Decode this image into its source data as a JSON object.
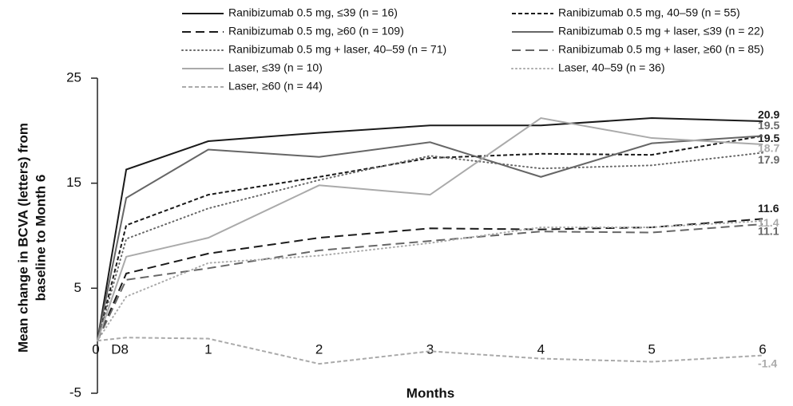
{
  "chart_data": {
    "type": "line",
    "ylabel": [
      "Mean change in BCVA (letters) from",
      "baseline to Month 6"
    ],
    "xlabel": "Months",
    "x": [
      0,
      0.26,
      1,
      2,
      3,
      4,
      5,
      6
    ],
    "xlim": [
      0,
      6
    ],
    "xticks": [
      0,
      {
        "value": 0.26,
        "label": "D8"
      },
      1,
      2,
      3,
      4,
      5,
      6
    ],
    "ylim": [
      -5,
      25
    ],
    "yticks": [
      -5,
      5,
      15,
      25
    ],
    "series": [
      {
        "name": "Ranibizumab 0.5 mg, ≤39 (n = 16)",
        "color": "#1a1a1a",
        "dash": "solid",
        "values": [
          0,
          16.3,
          19.0,
          19.8,
          20.5,
          20.5,
          21.2,
          20.9
        ]
      },
      {
        "name": "Ranibizumab 0.5 mg, 40–59 (n = 55)",
        "color": "#1a1a1a",
        "dash": "short",
        "values": [
          0,
          11.0,
          13.9,
          15.6,
          17.4,
          17.8,
          17.7,
          19.5
        ]
      },
      {
        "name": "Ranibizumab 0.5 mg, ≥60 (n = 109)",
        "color": "#1a1a1a",
        "dash": "long",
        "values": [
          0,
          6.4,
          8.3,
          9.8,
          10.7,
          10.6,
          10.8,
          11.6
        ]
      },
      {
        "name": "Ranibizumab 0.5 mg + laser, ≤39 (n = 22)",
        "color": "#666666",
        "dash": "solid",
        "values": [
          0,
          13.6,
          18.2,
          17.5,
          18.9,
          15.6,
          18.8,
          19.5
        ]
      },
      {
        "name": "Ranibizumab 0.5 mg + laser, 40–59 (n = 71)",
        "color": "#666666",
        "dash": "dotted",
        "values": [
          0,
          9.7,
          12.6,
          15.3,
          17.6,
          16.4,
          16.7,
          17.9
        ]
      },
      {
        "name": "Ranibizumab 0.5 mg + laser, ≥60 (n = 85)",
        "color": "#666666",
        "dash": "long",
        "values": [
          0,
          5.8,
          6.9,
          8.6,
          9.5,
          10.4,
          10.3,
          11.1
        ]
      },
      {
        "name": "Laser, ≤39 (n = 10)",
        "color": "#aaaaaa",
        "dash": "solid",
        "values": [
          0,
          8.0,
          9.8,
          14.8,
          13.9,
          21.2,
          19.3,
          18.7
        ]
      },
      {
        "name": "Laser, 40–59 (n = 36)",
        "color": "#aaaaaa",
        "dash": "dotted",
        "values": [
          0,
          4.2,
          7.4,
          8.1,
          9.3,
          10.8,
          10.8,
          11.4
        ]
      },
      {
        "name": "Laser, ≥60 (n = 44)",
        "color": "#aaaaaa",
        "dash": "short",
        "values": [
          0,
          0.3,
          0.2,
          -2.2,
          -1.0,
          -1.7,
          -2.0,
          -1.4
        ]
      }
    ]
  }
}
